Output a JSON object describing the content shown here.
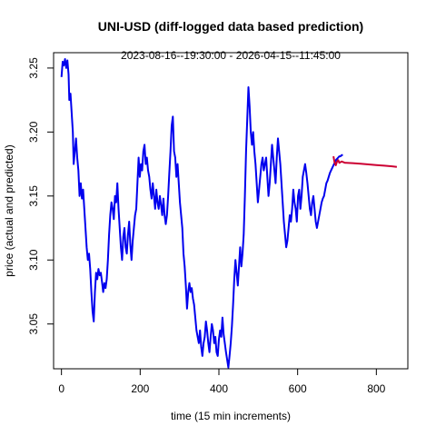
{
  "chart_data": {
    "type": "line",
    "title": "UNI-USD (diff-logged data based prediction)",
    "subtitle": "2023-08-16--19:30:00  -  2026-04-15--11:45:00",
    "xlabel": "time (15 min increments)",
    "ylabel": "price (actual and predicted)",
    "xlim": [
      -20,
      880
    ],
    "ylim": [
      3.015,
      3.262
    ],
    "x_ticks": [
      0,
      200,
      400,
      600,
      800
    ],
    "y_ticks": [
      3.05,
      3.1,
      3.15,
      3.2,
      3.25
    ],
    "y_tick_labels": [
      "3.05",
      "3.10",
      "3.15",
      "3.20",
      "3.25"
    ],
    "grid": false,
    "series": [
      {
        "color": "#0000ee",
        "points": [
          [
            0,
            3.243
          ],
          [
            3,
            3.255
          ],
          [
            6,
            3.252
          ],
          [
            9,
            3.257
          ],
          [
            12,
            3.25
          ],
          [
            15,
            3.256
          ],
          [
            18,
            3.245
          ],
          [
            20,
            3.225
          ],
          [
            23,
            3.23
          ],
          [
            26,
            3.215
          ],
          [
            29,
            3.2
          ],
          [
            31,
            3.175
          ],
          [
            34,
            3.185
          ],
          [
            37,
            3.195
          ],
          [
            40,
            3.18
          ],
          [
            43,
            3.17
          ],
          [
            46,
            3.15
          ],
          [
            49,
            3.16
          ],
          [
            52,
            3.148
          ],
          [
            55,
            3.155
          ],
          [
            58,
            3.14
          ],
          [
            61,
            3.125
          ],
          [
            64,
            3.11
          ],
          [
            67,
            3.1
          ],
          [
            70,
            3.105
          ],
          [
            73,
            3.093
          ],
          [
            76,
            3.075
          ],
          [
            79,
            3.06
          ],
          [
            82,
            3.052
          ],
          [
            85,
            3.075
          ],
          [
            88,
            3.09
          ],
          [
            91,
            3.085
          ],
          [
            94,
            3.093
          ],
          [
            97,
            3.088
          ],
          [
            100,
            3.09
          ],
          [
            103,
            3.083
          ],
          [
            106,
            3.075
          ],
          [
            109,
            3.082
          ],
          [
            112,
            3.078
          ],
          [
            115,
            3.085
          ],
          [
            118,
            3.1
          ],
          [
            121,
            3.12
          ],
          [
            124,
            3.135
          ],
          [
            127,
            3.145
          ],
          [
            130,
            3.14
          ],
          [
            133,
            3.132
          ],
          [
            136,
            3.15
          ],
          [
            139,
            3.145
          ],
          [
            142,
            3.16
          ],
          [
            145,
            3.14
          ],
          [
            148,
            3.125
          ],
          [
            151,
            3.11
          ],
          [
            154,
            3.1
          ],
          [
            157,
            3.118
          ],
          [
            160,
            3.125
          ],
          [
            163,
            3.11
          ],
          [
            166,
            3.105
          ],
          [
            169,
            3.12
          ],
          [
            172,
            3.13
          ],
          [
            175,
            3.112
          ],
          [
            178,
            3.1
          ],
          [
            181,
            3.115
          ],
          [
            184,
            3.125
          ],
          [
            187,
            3.135
          ],
          [
            190,
            3.14
          ],
          [
            193,
            3.16
          ],
          [
            196,
            3.18
          ],
          [
            199,
            3.165
          ],
          [
            202,
            3.175
          ],
          [
            205,
            3.17
          ],
          [
            208,
            3.185
          ],
          [
            211,
            3.19
          ],
          [
            214,
            3.175
          ],
          [
            217,
            3.18
          ],
          [
            220,
            3.17
          ],
          [
            223,
            3.165
          ],
          [
            226,
            3.155
          ],
          [
            229,
            3.148
          ],
          [
            232,
            3.16
          ],
          [
            235,
            3.15
          ],
          [
            238,
            3.14
          ],
          [
            241,
            3.155
          ],
          [
            244,
            3.145
          ],
          [
            247,
            3.14
          ],
          [
            250,
            3.15
          ],
          [
            253,
            3.143
          ],
          [
            256,
            3.135
          ],
          [
            259,
            3.148
          ],
          [
            262,
            3.135
          ],
          [
            265,
            3.128
          ],
          [
            268,
            3.135
          ],
          [
            271,
            3.15
          ],
          [
            274,
            3.168
          ],
          [
            277,
            3.185
          ],
          [
            280,
            3.205
          ],
          [
            283,
            3.212
          ],
          [
            286,
            3.185
          ],
          [
            289,
            3.18
          ],
          [
            292,
            3.165
          ],
          [
            295,
            3.175
          ],
          [
            298,
            3.16
          ],
          [
            301,
            3.145
          ],
          [
            304,
            3.135
          ],
          [
            307,
            3.125
          ],
          [
            310,
            3.105
          ],
          [
            313,
            3.095
          ],
          [
            316,
            3.08
          ],
          [
            319,
            3.062
          ],
          [
            322,
            3.075
          ],
          [
            325,
            3.082
          ],
          [
            328,
            3.075
          ],
          [
            331,
            3.078
          ],
          [
            334,
            3.07
          ],
          [
            337,
            3.065
          ],
          [
            340,
            3.055
          ],
          [
            343,
            3.045
          ],
          [
            346,
            3.04
          ],
          [
            349,
            3.035
          ],
          [
            352,
            3.045
          ],
          [
            355,
            3.032
          ],
          [
            358,
            3.025
          ],
          [
            361,
            3.035
          ],
          [
            364,
            3.04
          ],
          [
            367,
            3.052
          ],
          [
            370,
            3.045
          ],
          [
            373,
            3.035
          ],
          [
            376,
            3.028
          ],
          [
            379,
            3.04
          ],
          [
            382,
            3.05
          ],
          [
            385,
            3.045
          ],
          [
            388,
            3.035
          ],
          [
            391,
            3.04
          ],
          [
            394,
            3.028
          ],
          [
            397,
            3.025
          ],
          [
            400,
            3.038
          ],
          [
            403,
            3.045
          ],
          [
            406,
            3.04
          ],
          [
            409,
            3.055
          ],
          [
            412,
            3.042
          ],
          [
            415,
            3.035
          ],
          [
            418,
            3.028
          ],
          [
            421,
            3.022
          ],
          [
            424,
            3.016
          ],
          [
            427,
            3.025
          ],
          [
            430,
            3.035
          ],
          [
            433,
            3.048
          ],
          [
            436,
            3.065
          ],
          [
            439,
            3.085
          ],
          [
            442,
            3.1
          ],
          [
            445,
            3.09
          ],
          [
            448,
            3.08
          ],
          [
            451,
            3.095
          ],
          [
            454,
            3.11
          ],
          [
            457,
            3.095
          ],
          [
            460,
            3.105
          ],
          [
            463,
            3.12
          ],
          [
            466,
            3.15
          ],
          [
            469,
            3.185
          ],
          [
            472,
            3.21
          ],
          [
            475,
            3.235
          ],
          [
            478,
            3.22
          ],
          [
            481,
            3.2
          ],
          [
            484,
            3.19
          ],
          [
            487,
            3.2
          ],
          [
            490,
            3.185
          ],
          [
            493,
            3.175
          ],
          [
            496,
            3.16
          ],
          [
            499,
            3.145
          ],
          [
            502,
            3.155
          ],
          [
            505,
            3.165
          ],
          [
            508,
            3.175
          ],
          [
            511,
            3.18
          ],
          [
            514,
            3.17
          ],
          [
            517,
            3.175
          ],
          [
            520,
            3.18
          ],
          [
            523,
            3.165
          ],
          [
            526,
            3.15
          ],
          [
            529,
            3.16
          ],
          [
            532,
            3.175
          ],
          [
            535,
            3.19
          ],
          [
            538,
            3.18
          ],
          [
            541,
            3.17
          ],
          [
            544,
            3.16
          ],
          [
            547,
            3.18
          ],
          [
            550,
            3.195
          ],
          [
            553,
            3.185
          ],
          [
            556,
            3.175
          ],
          [
            559,
            3.16
          ],
          [
            562,
            3.145
          ],
          [
            565,
            3.13
          ],
          [
            568,
            3.12
          ],
          [
            571,
            3.11
          ],
          [
            574,
            3.115
          ],
          [
            577,
            3.125
          ],
          [
            580,
            3.135
          ],
          [
            583,
            3.13
          ],
          [
            586,
            3.14
          ],
          [
            589,
            3.155
          ],
          [
            592,
            3.145
          ],
          [
            595,
            3.14
          ],
          [
            598,
            3.13
          ],
          [
            601,
            3.15
          ],
          [
            604,
            3.155
          ],
          [
            607,
            3.14
          ],
          [
            610,
            3.15
          ],
          [
            613,
            3.165
          ],
          [
            616,
            3.17
          ],
          [
            619,
            3.175
          ],
          [
            622,
            3.168
          ],
          [
            625,
            3.16
          ],
          [
            628,
            3.15
          ],
          [
            631,
            3.14
          ],
          [
            634,
            3.135
          ],
          [
            637,
            3.145
          ],
          [
            640,
            3.15
          ],
          [
            643,
            3.14
          ],
          [
            646,
            3.13
          ],
          [
            649,
            3.125
          ],
          [
            652,
            3.13
          ],
          [
            655,
            3.135
          ],
          [
            658,
            3.14
          ],
          [
            661,
            3.145
          ],
          [
            664,
            3.148
          ],
          [
            667,
            3.15
          ],
          [
            670,
            3.155
          ],
          [
            673,
            3.16
          ],
          [
            676,
            3.162
          ],
          [
            679,
            3.165
          ],
          [
            682,
            3.168
          ],
          [
            685,
            3.17
          ],
          [
            688,
            3.172
          ],
          [
            691,
            3.174
          ],
          [
            694,
            3.176
          ],
          [
            697,
            3.178
          ],
          [
            700,
            3.179
          ],
          [
            703,
            3.18
          ],
          [
            706,
            3.181
          ],
          [
            709,
            3.181
          ],
          [
            712,
            3.182
          ],
          [
            715,
            3.182
          ]
        ]
      },
      {
        "color": "#cc0033",
        "points": [
          [
            691,
            3.181
          ],
          [
            694,
            3.176
          ],
          [
            697,
            3.174
          ],
          [
            700,
            3.177
          ],
          [
            703,
            3.178
          ],
          [
            706,
            3.176
          ],
          [
            712,
            3.177
          ],
          [
            720,
            3.176
          ],
          [
            740,
            3.1757
          ],
          [
            760,
            3.1752
          ],
          [
            780,
            3.1747
          ],
          [
            800,
            3.1742
          ],
          [
            820,
            3.1737
          ],
          [
            840,
            3.1732
          ],
          [
            852,
            3.1728
          ]
        ]
      }
    ]
  }
}
